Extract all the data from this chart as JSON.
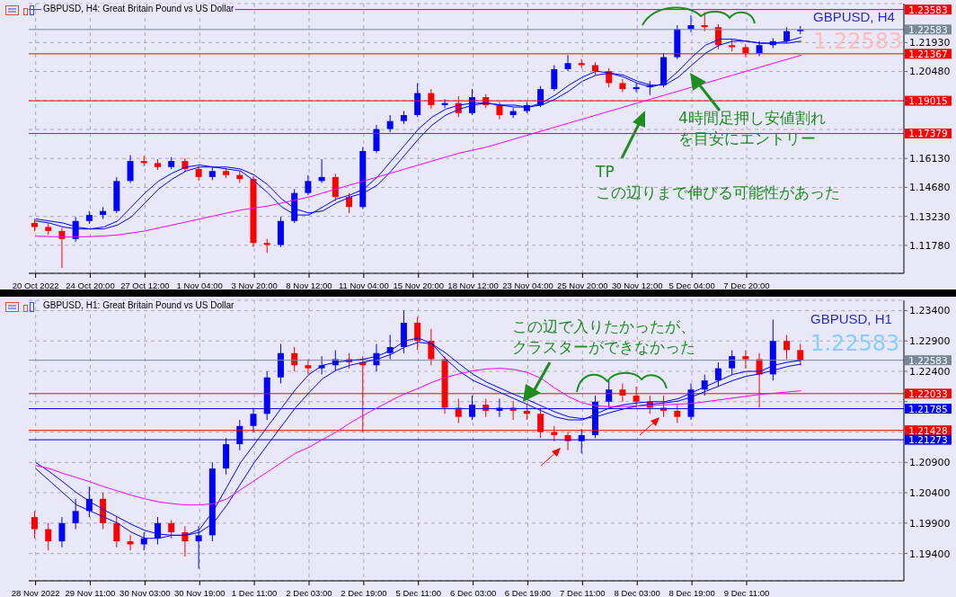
{
  "chart_data": [
    {
      "type": "candlestick",
      "title": "GBPUSD, H4:  Great Britain Pound vs US Dollar",
      "subtitle": "GBPUSD, H4",
      "categories": [
        "20 Oct 2022",
        null,
        null,
        null,
        "24 Oct 20:00",
        null,
        null,
        null,
        "27 Oct 12:00",
        null,
        null,
        null,
        "1 Nov 04:00",
        null,
        null,
        null,
        "3 Nov 20:00",
        null,
        null,
        null,
        "8 Nov 12:00",
        null,
        null,
        null,
        "11 Nov 04:00",
        null,
        null,
        null,
        "15 Nov 20:00",
        null,
        null,
        null,
        "18 Nov 12:00",
        null,
        null,
        null,
        "23 Nov 04:00",
        null,
        null,
        null,
        "25 Nov 20:00",
        null,
        null,
        null,
        "30 Nov 12:00",
        null,
        null,
        null,
        "5 Dec 04:00",
        null,
        null,
        null,
        "7 Dec 20:00",
        null,
        null,
        null,
        null,
        null,
        null,
        null,
        null,
        null,
        null,
        null
      ],
      "ohlc": [
        [
          1.129,
          1.131,
          1.125,
          1.127
        ],
        [
          1.127,
          1.129,
          1.123,
          1.125
        ],
        [
          1.125,
          1.1265,
          1.1065,
          1.121
        ],
        [
          1.121,
          1.132,
          1.1195,
          1.13
        ],
        [
          1.13,
          1.135,
          1.1285,
          1.133
        ],
        [
          1.133,
          1.137,
          1.131,
          1.135
        ],
        [
          1.135,
          1.152,
          1.134,
          1.15
        ],
        [
          1.15,
          1.163,
          1.149,
          1.16
        ],
        [
          1.16,
          1.1625,
          1.1575,
          1.159
        ],
        [
          1.159,
          1.161,
          1.1555,
          1.157
        ],
        [
          1.157,
          1.162,
          1.156,
          1.16
        ],
        [
          1.16,
          1.1615,
          1.1545,
          1.156
        ],
        [
          1.156,
          1.1575,
          1.15,
          1.152
        ],
        [
          1.152,
          1.157,
          1.1505,
          1.155
        ],
        [
          1.155,
          1.1565,
          1.1515,
          1.153
        ],
        [
          1.153,
          1.155,
          1.149,
          1.151
        ],
        [
          1.151,
          1.1525,
          1.117,
          1.119
        ],
        [
          1.119,
          1.121,
          1.114,
          1.118
        ],
        [
          1.118,
          1.132,
          1.117,
          1.13
        ],
        [
          1.13,
          1.146,
          1.129,
          1.144
        ],
        [
          1.144,
          1.153,
          1.143,
          1.15
        ],
        [
          1.15,
          1.161,
          1.149,
          1.152
        ],
        [
          1.152,
          1.1535,
          1.14,
          1.142
        ],
        [
          1.142,
          1.144,
          1.134,
          1.137
        ],
        [
          1.137,
          1.167,
          1.136,
          1.165
        ],
        [
          1.165,
          1.178,
          1.164,
          1.176
        ],
        [
          1.176,
          1.183,
          1.1745,
          1.18
        ],
        [
          1.18,
          1.185,
          1.1785,
          1.183
        ],
        [
          1.183,
          1.199,
          1.182,
          1.194
        ],
        [
          1.194,
          1.196,
          1.186,
          1.188
        ],
        [
          1.188,
          1.191,
          1.1865,
          1.189
        ],
        [
          1.189,
          1.1925,
          1.182,
          1.184
        ],
        [
          1.184,
          1.196,
          1.183,
          1.192
        ],
        [
          1.192,
          1.1935,
          1.1865,
          1.188
        ],
        [
          1.188,
          1.1895,
          1.181,
          1.183
        ],
        [
          1.183,
          1.1865,
          1.1815,
          1.185
        ],
        [
          1.185,
          1.1895,
          1.184,
          1.188
        ],
        [
          1.188,
          1.1975,
          1.187,
          1.196
        ],
        [
          1.196,
          1.208,
          1.195,
          1.206
        ],
        [
          1.206,
          1.213,
          1.205,
          1.209
        ],
        [
          1.209,
          1.211,
          1.2065,
          1.208
        ],
        [
          1.208,
          1.2095,
          1.203,
          1.205
        ],
        [
          1.205,
          1.2065,
          1.197,
          1.199
        ],
        [
          1.199,
          1.201,
          1.1945,
          1.196
        ],
        [
          1.196,
          1.199,
          1.1945,
          1.197
        ],
        [
          1.197,
          1.2,
          1.193,
          1.198
        ],
        [
          1.198,
          1.214,
          1.197,
          1.212
        ],
        [
          1.212,
          1.228,
          1.211,
          1.226
        ],
        [
          1.226,
          1.233,
          1.2245,
          1.228
        ],
        [
          1.228,
          1.2345,
          1.225,
          1.227
        ],
        [
          1.227,
          1.2285,
          1.216,
          1.218
        ],
        [
          1.218,
          1.221,
          1.215,
          1.217
        ],
        [
          1.217,
          1.2185,
          1.212,
          1.214
        ],
        [
          1.214,
          1.22,
          1.2125,
          1.218
        ],
        [
          1.218,
          1.2215,
          1.2165,
          1.22
        ],
        [
          1.22,
          1.227,
          1.219,
          1.225
        ],
        [
          1.225,
          1.2275,
          1.2235,
          1.2258
        ],
        null,
        null,
        null,
        null,
        null,
        null,
        null
      ],
      "colors": [
        "#ff0000",
        "#ff0000",
        "#ff0000",
        "#0000ff",
        "#0000ff",
        "#0000ff",
        "#0000ff",
        "#0000ff",
        "#ff0000",
        "#ff0000",
        "#0000ff",
        "#ff0000",
        "#ff0000",
        "#0000ff",
        "#ff0000",
        "#ff0000",
        "#ff0000",
        "#ff0000",
        "#0000ff",
        "#0000ff",
        "#0000ff",
        "#0000ff",
        "#ff0000",
        "#ff0000",
        "#0000ff",
        "#0000ff",
        "#0000ff",
        "#0000ff",
        "#0000ff",
        "#ff0000",
        "#0000ff",
        "#ff0000",
        "#0000ff",
        "#ff0000",
        "#ff0000",
        "#0000ff",
        "#0000ff",
        "#0000ff",
        "#0000ff",
        "#0000ff",
        "#ff0000",
        "#ff0000",
        "#ff0000",
        "#ff0000",
        "#0000ff",
        "#0000ff",
        "#0000ff",
        "#0000ff",
        "#0000ff",
        "#ff0000",
        "#ff0000",
        "#ff0000",
        "#ff0000",
        "#0000ff",
        "#0000ff",
        "#0000ff",
        "#0000ff",
        null,
        null,
        null,
        null,
        null,
        null,
        null
      ],
      "series": [
        {
          "type": "line",
          "color": "#0000ff",
          "values": [
            1.13,
            1.129,
            1.127,
            1.126,
            1.126,
            1.127,
            1.13,
            1.137,
            1.144,
            1.15,
            1.154,
            1.157,
            1.158,
            1.157,
            1.156,
            1.155,
            1.15,
            1.144,
            1.137,
            1.133,
            1.133,
            1.137,
            1.141,
            1.143,
            1.146,
            1.152,
            1.16,
            1.168,
            1.176,
            1.182,
            1.186,
            1.188,
            1.189,
            1.189,
            1.188,
            1.187,
            1.187,
            1.189,
            1.193,
            1.198,
            1.202,
            1.205,
            1.204,
            1.202,
            1.199,
            1.197,
            1.199,
            1.205,
            1.212,
            1.218,
            1.221,
            1.221,
            1.22,
            1.219,
            1.219,
            1.22,
            1.222,
            null,
            null,
            null,
            null,
            null,
            null,
            null
          ]
        },
        {
          "type": "line",
          "color": "#0000ff",
          "values": [
            1.131,
            1.13,
            1.129,
            1.127,
            1.126,
            1.126,
            1.128,
            1.132,
            1.139,
            1.146,
            1.151,
            1.155,
            1.157,
            1.157,
            1.157,
            1.156,
            1.153,
            1.148,
            1.141,
            1.136,
            1.134,
            1.135,
            1.139,
            1.142,
            1.144,
            1.148,
            1.155,
            1.163,
            1.171,
            1.178,
            1.183,
            1.186,
            1.188,
            1.189,
            1.188,
            1.188,
            1.187,
            1.188,
            1.191,
            1.195,
            1.2,
            1.203,
            1.204,
            1.203,
            1.2,
            1.198,
            1.198,
            1.202,
            1.208,
            1.214,
            1.218,
            1.22,
            1.22,
            1.219,
            1.219,
            1.219,
            1.22,
            null,
            null,
            null,
            null,
            null,
            null,
            null
          ]
        },
        {
          "type": "line",
          "color": "#ff00ff",
          "values": [
            1.1224,
            1.1222,
            1.122,
            1.122,
            1.1222,
            1.1225,
            1.123,
            1.124,
            1.125,
            1.1265,
            1.128,
            1.1295,
            1.131,
            1.1325,
            1.134,
            1.1355,
            1.1365,
            1.1375,
            1.139,
            1.1405,
            1.142,
            1.144,
            1.146,
            1.148,
            1.15,
            1.152,
            1.154,
            1.156,
            1.158,
            1.16,
            1.162,
            1.164,
            1.1655,
            1.167,
            1.169,
            1.171,
            1.173,
            1.175,
            1.177,
            1.179,
            1.181,
            1.183,
            1.185,
            1.187,
            1.189,
            1.191,
            1.193,
            1.195,
            1.197,
            1.199,
            1.201,
            1.203,
            1.205,
            1.207,
            1.209,
            1.211,
            1.213,
            null,
            null,
            null,
            null,
            null,
            null,
            null
          ]
        }
      ],
      "ylim": [
        1.1038,
        1.2388
      ],
      "yticks": [
        {
          "value": 1.1178,
          "label": "1.11780"
        },
        {
          "value": 1.1323,
          "label": "1.13230"
        },
        {
          "value": 1.1468,
          "label": "1.14680"
        },
        {
          "value": 1.1613,
          "label": "1.16130"
        },
        {
          "value": 1.1758,
          "label": null
        },
        {
          "value": 1.1903,
          "label": null
        },
        {
          "value": 1.2048,
          "label": "1.20480"
        },
        {
          "value": 1.2193,
          "label": "1.21930"
        }
      ],
      "ref_lines": [
        {
          "axis": "y",
          "value": 1.23583,
          "label": "1.23583",
          "color": "#ff0000"
        },
        {
          "axis": "y",
          "value": 1.22583,
          "label": "1.22583",
          "color": "#778899"
        },
        {
          "axis": "y",
          "value": 1.21367,
          "label": "1.21367",
          "color": "#ff0000"
        },
        {
          "axis": "y",
          "value": 1.19015,
          "label": "1.19015",
          "color": "#ff0000"
        },
        {
          "axis": "y",
          "value": 1.17379,
          "label": "1.17379",
          "color": "#ff0000"
        }
      ],
      "annotations": [
        "1.22583",
        {
          "text": "4時間足押し安値割れを目安にエントリー",
          "y": 1.204
        },
        "TP\nこの辺りまで伸びる可能性があった"
      ],
      "grid": true
    },
    {
      "type": "candlestick",
      "title": "GBPUSD, H1:  Great Britain Pound vs US Dollar",
      "subtitle": "GBPUSD, H1",
      "categories": [
        "28 Nov 2022",
        null,
        null,
        null,
        "29 Nov 11:00",
        null,
        null,
        null,
        "30 Nov 03:00",
        null,
        null,
        null,
        "30 Nov 19:00",
        null,
        null,
        null,
        "1 Dec 11:00",
        null,
        null,
        null,
        "2 Dec 03:00",
        null,
        null,
        null,
        "2 Dec 19:00",
        null,
        null,
        null,
        "5 Dec 11:00",
        null,
        null,
        null,
        "6 Dec 03:00",
        null,
        null,
        null,
        "6 Dec 19:00",
        null,
        null,
        null,
        "7 Dec 11:00",
        null,
        null,
        null,
        "8 Dec 03:00",
        null,
        null,
        null,
        "8 Dec 19:00",
        null,
        null,
        null,
        "9 Dec 11:00",
        null,
        null,
        null,
        null,
        null,
        null,
        null,
        null,
        null,
        null,
        null
      ],
      "ohlc": [
        [
          1.2,
          1.201,
          1.1965,
          1.198
        ],
        [
          1.198,
          1.199,
          1.1945,
          1.196
        ],
        [
          1.196,
          1.2,
          1.195,
          1.199
        ],
        [
          1.199,
          1.203,
          1.198,
          1.201
        ],
        [
          1.201,
          1.205,
          1.2,
          1.203
        ],
        [
          1.203,
          1.204,
          1.198,
          1.199
        ],
        [
          1.199,
          1.2,
          1.195,
          1.196
        ],
        [
          1.196,
          1.197,
          1.1945,
          1.1955
        ],
        [
          1.1955,
          1.1975,
          1.1945,
          1.1965
        ],
        [
          1.1965,
          1.2,
          1.1955,
          1.199
        ],
        [
          1.199,
          1.1995,
          1.1965,
          1.1975
        ],
        [
          1.1975,
          1.1985,
          1.1935,
          1.196
        ],
        [
          1.196,
          1.1985,
          1.1915,
          1.197
        ],
        [
          1.197,
          1.209,
          1.196,
          1.208
        ],
        [
          1.208,
          1.213,
          1.207,
          1.212
        ],
        [
          1.212,
          1.216,
          1.211,
          1.215
        ],
        [
          1.215,
          1.218,
          1.214,
          1.217
        ],
        [
          1.217,
          1.224,
          1.216,
          1.223
        ],
        [
          1.223,
          1.2285,
          1.222,
          1.227
        ],
        [
          1.227,
          1.228,
          1.224,
          1.225
        ],
        [
          1.225,
          1.226,
          1.2235,
          1.2245
        ],
        [
          1.2245,
          1.2265,
          1.2235,
          1.225
        ],
        [
          1.225,
          1.2275,
          1.224,
          1.226
        ],
        [
          1.226,
          1.227,
          1.2245,
          1.2255
        ],
        [
          1.2255,
          1.2265,
          1.214,
          1.225
        ],
        [
          1.225,
          1.2285,
          1.224,
          1.227
        ],
        [
          1.227,
          1.23,
          1.226,
          1.228
        ],
        [
          1.228,
          1.234,
          1.227,
          1.232
        ],
        [
          1.232,
          1.233,
          1.2275,
          1.229
        ],
        [
          1.229,
          1.231,
          1.225,
          1.226
        ],
        [
          1.226,
          1.2265,
          1.217,
          1.218
        ],
        [
          1.218,
          1.2195,
          1.2155,
          1.2165
        ],
        [
          1.2165,
          1.22,
          1.216,
          1.2185
        ],
        [
          1.2185,
          1.2195,
          1.2165,
          1.2175
        ],
        [
          1.2175,
          1.2195,
          1.2165,
          1.218
        ],
        [
          1.218,
          1.219,
          1.216,
          1.2175
        ],
        [
          1.2175,
          1.2185,
          1.216,
          1.217
        ],
        [
          1.217,
          1.218,
          1.213,
          1.214
        ],
        [
          1.214,
          1.215,
          1.2125,
          1.2135
        ],
        [
          1.2135,
          1.214,
          1.211,
          1.2125
        ],
        [
          1.2125,
          1.2145,
          1.2105,
          1.2135
        ],
        [
          1.2135,
          1.22,
          1.213,
          1.219
        ],
        [
          1.219,
          1.2225,
          1.218,
          1.221
        ],
        [
          1.221,
          1.222,
          1.219,
          1.22
        ],
        [
          1.22,
          1.2215,
          1.218,
          1.219
        ],
        [
          1.219,
          1.22,
          1.217,
          1.218
        ],
        [
          1.218,
          1.22,
          1.2165,
          1.2175
        ],
        [
          1.2175,
          1.2185,
          1.2155,
          1.2165
        ],
        [
          1.2165,
          1.222,
          1.216,
          1.221
        ],
        [
          1.221,
          1.2235,
          1.22,
          1.2225
        ],
        [
          1.2225,
          1.2255,
          1.2215,
          1.2245
        ],
        [
          1.2245,
          1.2275,
          1.2235,
          1.2265
        ],
        [
          1.2265,
          1.2275,
          1.2245,
          1.226
        ],
        [
          1.226,
          1.227,
          1.218,
          1.2235
        ],
        [
          1.2235,
          1.2325,
          1.2225,
          1.229
        ],
        [
          1.229,
          1.23,
          1.226,
          1.2275
        ],
        [
          1.2275,
          1.2285,
          1.225,
          1.2258
        ],
        null,
        null,
        null,
        null,
        null,
        null,
        null
      ],
      "colors": [
        "#ff0000",
        "#ff0000",
        "#0000ff",
        "#0000ff",
        "#0000ff",
        "#ff0000",
        "#ff0000",
        "#ff0000",
        "#0000ff",
        "#0000ff",
        "#ff0000",
        "#ff0000",
        "#0000ff",
        "#0000ff",
        "#0000ff",
        "#0000ff",
        "#0000ff",
        "#0000ff",
        "#0000ff",
        "#ff0000",
        "#ff0000",
        "#0000ff",
        "#0000ff",
        "#ff0000",
        "#ff0000",
        "#0000ff",
        "#0000ff",
        "#0000ff",
        "#ff0000",
        "#ff0000",
        "#ff0000",
        "#ff0000",
        "#0000ff",
        "#ff0000",
        "#0000ff",
        "#ff0000",
        "#ff0000",
        "#ff0000",
        "#ff0000",
        "#ff0000",
        "#0000ff",
        "#0000ff",
        "#0000ff",
        "#ff0000",
        "#ff0000",
        "#ff0000",
        "#ff0000",
        "#ff0000",
        "#0000ff",
        "#0000ff",
        "#0000ff",
        "#0000ff",
        "#ff0000",
        "#ff0000",
        "#0000ff",
        "#ff0000",
        "#ff0000",
        null,
        null,
        null,
        null,
        null,
        null,
        null
      ],
      "series": [
        {
          "type": "line",
          "color": "#0000ff",
          "values": [
            1.208,
            1.206,
            1.204,
            1.202,
            1.201,
            1.2,
            1.199,
            1.1975,
            1.1965,
            1.1965,
            1.197,
            1.197,
            1.198,
            1.201,
            1.205,
            1.209,
            1.212,
            1.215,
            1.218,
            1.221,
            1.2235,
            1.225,
            1.2255,
            1.2258,
            1.226,
            1.2265,
            1.2275,
            1.229,
            1.2295,
            1.2285,
            1.226,
            1.224,
            1.2225,
            1.2215,
            1.2205,
            1.2195,
            1.2185,
            1.2175,
            1.2165,
            1.216,
            1.216,
            1.217,
            1.218,
            1.2185,
            1.2188,
            1.219,
            1.219,
            1.2195,
            1.2205,
            1.2215,
            1.2225,
            1.2235,
            1.224,
            1.224,
            1.225,
            1.2255,
            1.2258,
            null,
            null,
            null,
            null,
            null,
            null,
            null
          ]
        },
        {
          "type": "line",
          "color": "#0000ff",
          "values": [
            1.209,
            1.2075,
            1.2058,
            1.204,
            1.2025,
            1.2012,
            1.2,
            1.1988,
            1.1978,
            1.1972,
            1.197,
            1.197,
            1.1975,
            1.199,
            1.202,
            1.2055,
            1.209,
            1.212,
            1.215,
            1.218,
            1.2205,
            1.2228,
            1.2242,
            1.225,
            1.2255,
            1.226,
            1.2268,
            1.228,
            1.2288,
            1.2285,
            1.227,
            1.2252,
            1.2235,
            1.2222,
            1.2212,
            1.2202,
            1.2193,
            1.2183,
            1.2173,
            1.2165,
            1.2162,
            1.2165,
            1.2172,
            1.2178,
            1.2183,
            1.2186,
            1.2188,
            1.2191,
            1.2198,
            1.2207,
            1.2216,
            1.2225,
            1.2232,
            1.2236,
            1.2242,
            1.2248,
            1.2252,
            null,
            null,
            null,
            null,
            null,
            null,
            null
          ]
        },
        {
          "type": "line",
          "color": "#ff00ff",
          "values": [
            1.2085,
            1.208,
            1.2072,
            1.2065,
            1.2058,
            1.205,
            1.2043,
            1.2036,
            1.203,
            1.2025,
            1.2022,
            1.202,
            1.202,
            1.2022,
            1.203,
            1.2045,
            1.206,
            1.2075,
            1.209,
            1.2105,
            1.2115,
            1.2128,
            1.214,
            1.2155,
            1.2168,
            1.218,
            1.2192,
            1.2203,
            1.2212,
            1.2222,
            1.223,
            1.2236,
            1.2241,
            1.2244,
            1.2245,
            1.2243,
            1.2238,
            1.2228,
            1.2212,
            1.2198,
            1.2188,
            1.2183,
            1.2182,
            1.2182,
            1.2183,
            1.2184,
            1.2185,
            1.2186,
            1.2187,
            1.219,
            1.2193,
            1.2196,
            1.2199,
            1.2202,
            1.2204,
            1.2206,
            1.2208,
            null,
            null,
            null,
            null,
            null,
            null,
            null
          ]
        }
      ],
      "ylim": [
        1.1895,
        1.2357
      ],
      "yticks": [
        {
          "value": 1.194,
          "label": "1.19400"
        },
        {
          "value": 1.199,
          "label": "1.19900"
        },
        {
          "value": 1.204,
          "label": "1.20400"
        },
        {
          "value": 1.209,
          "label": "1.20900"
        },
        {
          "value": 1.214,
          "label": null
        },
        {
          "value": 1.219,
          "label": null
        },
        {
          "value": 1.224,
          "label": "1.22400"
        },
        {
          "value": 1.229,
          "label": "1.22900"
        },
        {
          "value": 1.234,
          "label": "1.23400"
        }
      ],
      "ref_lines": [
        {
          "axis": "y",
          "value": 1.22583,
          "label": "1.22583",
          "color": "#778899"
        },
        {
          "axis": "y",
          "value": 1.22033,
          "label": "1.22033",
          "color": "#ff0000"
        },
        {
          "axis": "y",
          "value": 1.21785,
          "label": "1.21785",
          "color": "#0000ff"
        },
        {
          "axis": "y",
          "value": 1.21428,
          "label": "1.21428",
          "color": "#ff0000"
        },
        {
          "axis": "y",
          "value": 1.21273,
          "label": "1.21273",
          "color": "#0000ff"
        }
      ],
      "annotations": [
        "1.22583",
        {
          "text": "この辺で入りたかったが、クラスターができなかった",
          "y": 1.219
        }
      ],
      "grid": true
    }
  ]
}
